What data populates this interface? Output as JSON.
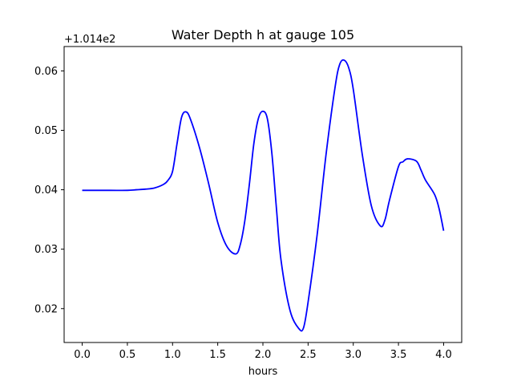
{
  "chart_data": {
    "type": "line",
    "title": "Water Depth h at gauge 105",
    "xlabel": "hours",
    "ylabel": "",
    "y_offset_label": "+1.014e2",
    "xlim": [
      -0.2,
      4.2
    ],
    "ylim": [
      0.0143,
      0.0641
    ],
    "x_ticks": [
      0.0,
      0.5,
      1.0,
      1.5,
      2.0,
      2.5,
      3.0,
      3.5,
      4.0
    ],
    "x_tick_labels": [
      "0.0",
      "0.5",
      "1.0",
      "1.5",
      "2.0",
      "2.5",
      "3.0",
      "3.5",
      "4.0"
    ],
    "y_ticks": [
      0.02,
      0.03,
      0.04,
      0.05,
      0.06
    ],
    "y_tick_labels": [
      "0.02",
      "0.03",
      "0.04",
      "0.05",
      "0.06"
    ],
    "grid": false,
    "series": [
      {
        "color": "#0000ff",
        "x": [
          0.0,
          0.3,
          0.5,
          0.6,
          0.7,
          0.8,
          0.9,
          0.95,
          1.0,
          1.05,
          1.1,
          1.15,
          1.2,
          1.3,
          1.4,
          1.5,
          1.6,
          1.7,
          1.75,
          1.8,
          1.85,
          1.9,
          1.95,
          2.0,
          2.05,
          2.1,
          2.15,
          2.2,
          2.3,
          2.4,
          2.45,
          2.5,
          2.6,
          2.7,
          2.8,
          2.85,
          2.9,
          2.95,
          3.0,
          3.1,
          3.2,
          3.3,
          3.35,
          3.4,
          3.5,
          3.55,
          3.6,
          3.7,
          3.75,
          3.8,
          3.9,
          3.95,
          4.0
        ],
        "y": [
          0.0399,
          0.0399,
          0.0399,
          0.04,
          0.0401,
          0.0403,
          0.0409,
          0.0416,
          0.0431,
          0.0478,
          0.0522,
          0.0531,
          0.0518,
          0.047,
          0.041,
          0.0345,
          0.0305,
          0.0292,
          0.0308,
          0.0348,
          0.0409,
          0.0478,
          0.052,
          0.0532,
          0.0519,
          0.046,
          0.0368,
          0.0282,
          0.0197,
          0.0166,
          0.0168,
          0.0211,
          0.0324,
          0.0461,
          0.0574,
          0.0611,
          0.0618,
          0.0605,
          0.0569,
          0.0459,
          0.0373,
          0.0339,
          0.0349,
          0.0382,
          0.0439,
          0.0447,
          0.0452,
          0.0448,
          0.0433,
          0.0416,
          0.0392,
          0.0368,
          0.0331
        ]
      }
    ]
  }
}
